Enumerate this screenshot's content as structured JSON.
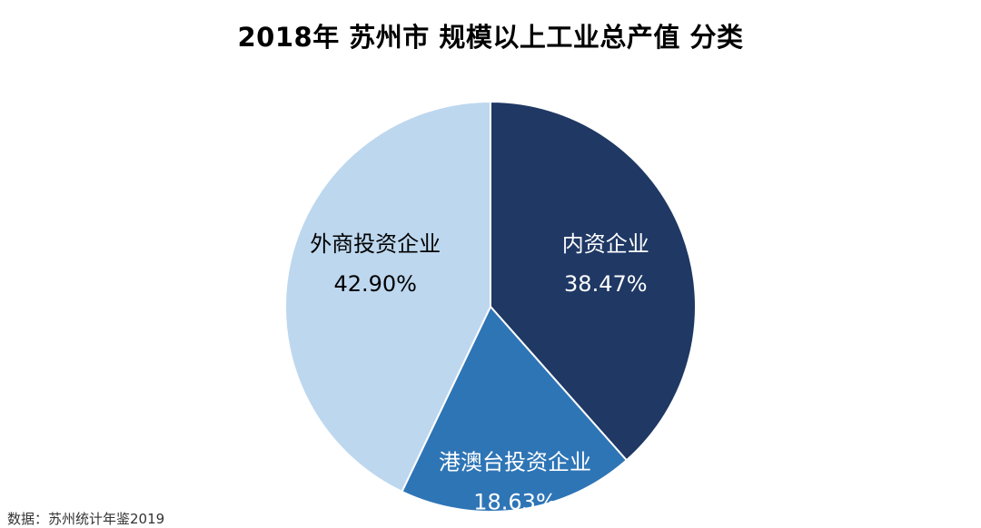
{
  "chart_data": {
    "type": "pie",
    "title": "2018年 苏州市 规模以上工业总产值 分类",
    "slices": [
      {
        "label": "内资企业",
        "value": 38.47,
        "display": "38.47%",
        "color": "#1f3864",
        "text_color": "#ffffff"
      },
      {
        "label": "港澳台投资企业",
        "value": 18.63,
        "display": "18.63%",
        "color": "#2e75b6",
        "text_color": "#ffffff"
      },
      {
        "label": "外商投资企业",
        "value": 42.9,
        "display": "42.90%",
        "color": "#bdd7ee",
        "text_color": "#000000"
      }
    ],
    "start_angle": "12 o'clock",
    "direction": "clockwise",
    "legend": "none",
    "source": "数据：苏州统计年鉴2019"
  }
}
